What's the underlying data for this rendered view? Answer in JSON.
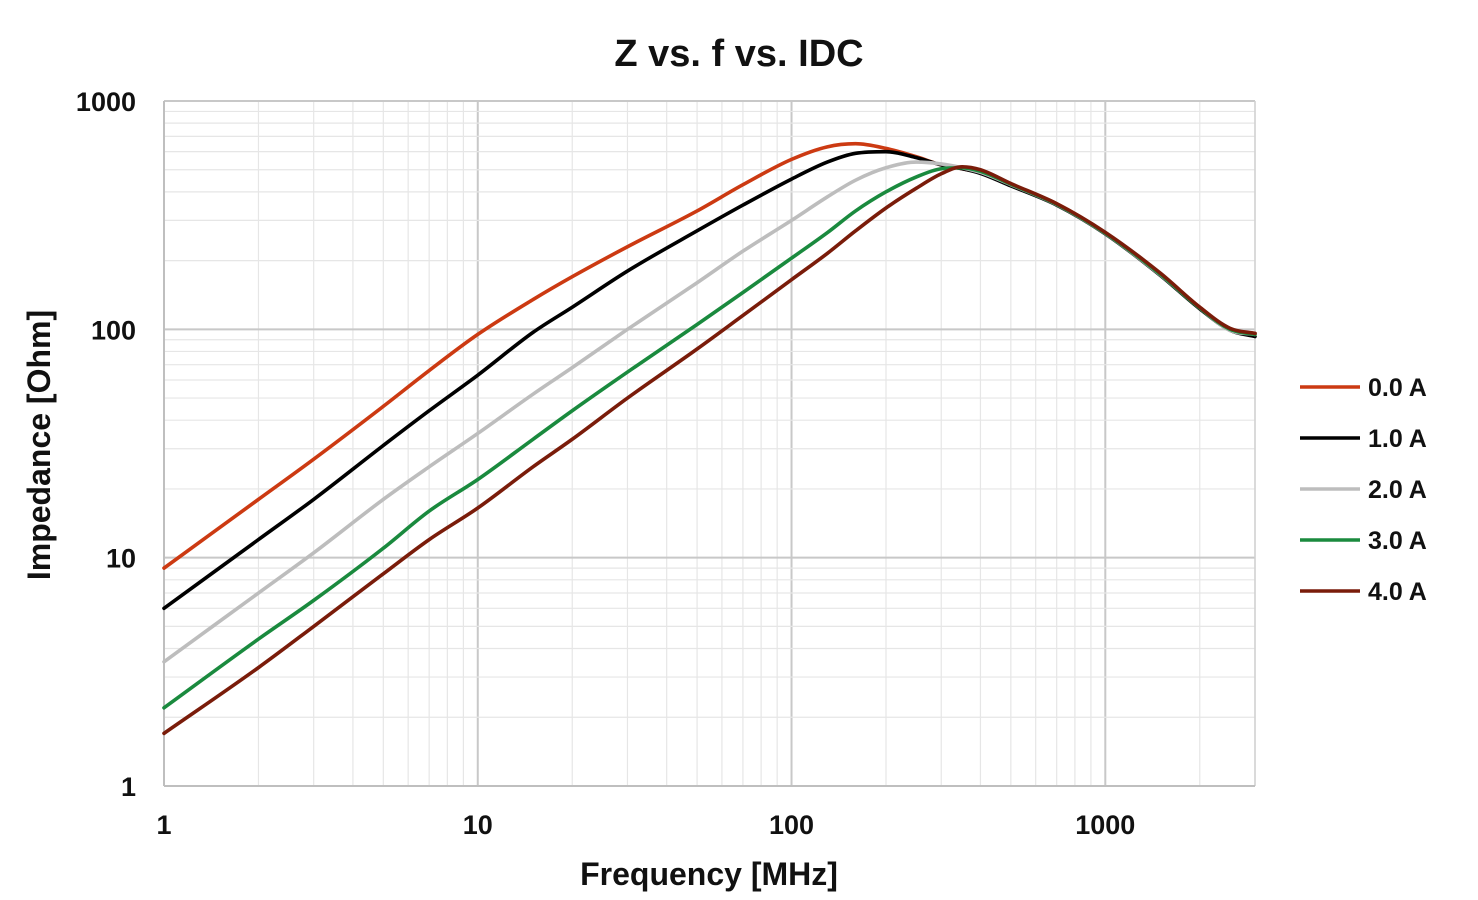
{
  "chart_data": {
    "type": "line",
    "title": "Z vs. f vs. IDC",
    "xlabel": "Frequency [MHz]",
    "ylabel": "Impedance [Ohm]",
    "x_scale": "log",
    "y_scale": "log",
    "xlim": [
      1,
      3000
    ],
    "ylim": [
      1,
      1000
    ],
    "x_ticks": [
      1,
      10,
      100,
      1000
    ],
    "x_tick_labels": [
      "1",
      "10",
      "100",
      "1000"
    ],
    "y_ticks": [
      1,
      10,
      100,
      1000
    ],
    "y_tick_labels": [
      "1",
      "10",
      "100",
      "1000"
    ],
    "grid": true,
    "legend_position": "right",
    "series": [
      {
        "name": "0.0 A",
        "color": "#cc3a12",
        "x": [
          1,
          2,
          3,
          5,
          7,
          10,
          15,
          20,
          30,
          50,
          70,
          100,
          130,
          160,
          200,
          250,
          300,
          350,
          400,
          500,
          700,
          1000,
          1500,
          2000,
          2500,
          3000
        ],
        "y": [
          9,
          18,
          27,
          46,
          66,
          95,
          135,
          170,
          230,
          330,
          430,
          555,
          630,
          650,
          620,
          570,
          525,
          505,
          485,
          430,
          355,
          265,
          175,
          125,
          100,
          96
        ]
      },
      {
        "name": "1.0 A",
        "color": "#000000",
        "x": [
          1,
          2,
          3,
          5,
          7,
          10,
          15,
          20,
          30,
          50,
          70,
          100,
          130,
          160,
          200,
          250,
          300,
          350,
          400,
          500,
          700,
          1000,
          1500,
          2000,
          2500,
          3000
        ],
        "y": [
          6,
          12,
          18,
          31,
          44,
          63,
          97,
          125,
          180,
          270,
          350,
          455,
          540,
          590,
          600,
          565,
          525,
          505,
          482,
          425,
          350,
          262,
          172,
          123,
          99,
          93
        ]
      },
      {
        "name": "2.0 A",
        "color": "#bdbdbd",
        "x": [
          1,
          2,
          3,
          5,
          7,
          10,
          15,
          20,
          30,
          50,
          70,
          100,
          130,
          160,
          200,
          250,
          300,
          350,
          400,
          500,
          700,
          1000,
          1500,
          2000,
          2500,
          3000
        ],
        "y": [
          3.5,
          7,
          10.5,
          18,
          25,
          35,
          52,
          68,
          100,
          160,
          220,
          300,
          380,
          450,
          510,
          540,
          530,
          510,
          487,
          430,
          352,
          263,
          173,
          124,
          99,
          95
        ]
      },
      {
        "name": "3.0 A",
        "color": "#1a8a3e",
        "x": [
          1,
          2,
          3,
          5,
          7,
          10,
          15,
          20,
          30,
          50,
          70,
          100,
          130,
          160,
          200,
          250,
          300,
          350,
          400,
          500,
          700,
          1000,
          1500,
          2000,
          2500,
          3000
        ],
        "y": [
          2.2,
          4.4,
          6.5,
          11,
          16,
          22,
          33,
          44,
          65,
          105,
          145,
          205,
          265,
          330,
          400,
          465,
          505,
          510,
          492,
          432,
          353,
          264,
          174,
          124,
          100,
          95
        ]
      },
      {
        "name": "4.0 A",
        "color": "#7a1c0a",
        "x": [
          1,
          2,
          3,
          5,
          7,
          10,
          15,
          20,
          30,
          50,
          70,
          100,
          130,
          160,
          200,
          250,
          300,
          350,
          400,
          500,
          700,
          1000,
          1500,
          2000,
          2500,
          3000
        ],
        "y": [
          1.7,
          3.3,
          5,
          8.5,
          12,
          16.5,
          25,
          33,
          50,
          82,
          115,
          165,
          215,
          270,
          340,
          415,
          480,
          515,
          500,
          435,
          355,
          266,
          176,
          125,
          101,
          96
        ]
      }
    ]
  }
}
